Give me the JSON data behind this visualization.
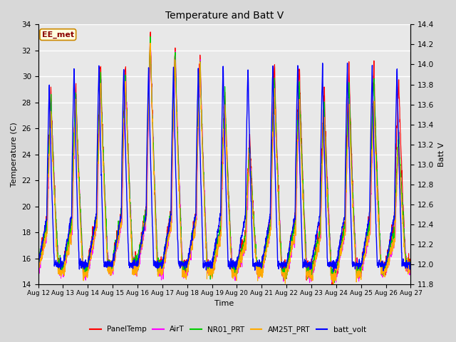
{
  "title": "Temperature and Batt V",
  "xlabel": "Time",
  "ylabel_left": "Temperature (C)",
  "ylabel_right": "Batt V",
  "annotation": "EE_met",
  "ylim_left": [
    14,
    34
  ],
  "ylim_right": [
    11.8,
    14.4
  ],
  "x_tick_labels": [
    "Aug 12",
    "Aug 13",
    "Aug 14",
    "Aug 15",
    "Aug 16",
    "Aug 17",
    "Aug 18",
    "Aug 19",
    "Aug 20",
    "Aug 21",
    "Aug 22",
    "Aug 23",
    "Aug 24",
    "Aug 25",
    "Aug 26",
    "Aug 27"
  ],
  "series_colors": {
    "PanelTemp": "#ff0000",
    "AirT": "#ff00ff",
    "NR01_PRT": "#00cc00",
    "AM25T_PRT": "#ffaa00",
    "batt_volt": "#0000ff"
  },
  "legend_entries": [
    "PanelTemp",
    "AirT",
    "NR01_PRT",
    "AM25T_PRT",
    "batt_volt"
  ],
  "fig_facecolor": "#d8d8d8",
  "axes_facecolor": "#e8e8e8"
}
